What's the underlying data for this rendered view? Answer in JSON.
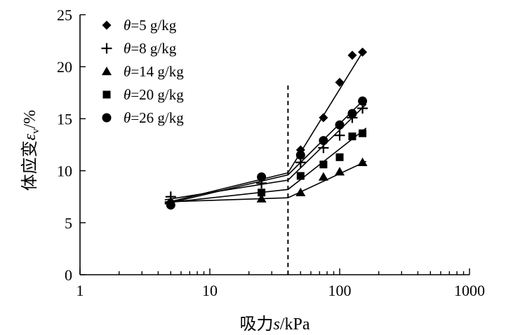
{
  "chart_data": {
    "type": "scatter",
    "xscale": "log",
    "xlim": [
      1,
      1000
    ],
    "ylim": [
      0,
      25
    ],
    "x_ticks": [
      1,
      10,
      100,
      1000
    ],
    "y_ticks": [
      0,
      5,
      10,
      15,
      20,
      25
    ],
    "x_tick_labels": [
      "1",
      "10",
      "100",
      "1000"
    ],
    "y_tick_labels": [
      "0",
      "5",
      "10",
      "15",
      "20",
      "25"
    ],
    "xlabel": {
      "prefix": "吸力",
      "var": "s",
      "suffix": "/kPa"
    },
    "ylabel": {
      "prefix": "体应变",
      "var": "ε",
      "sub": "v",
      "suffix": "/%"
    },
    "legend_position": "top-left",
    "vertical_reference_line": {
      "x": 40,
      "style": "dashed"
    },
    "series": [
      {
        "label": {
          "var": "θ",
          "value": "=5 g/kg"
        },
        "marker": "diamond",
        "points": [
          [
            5,
            7.0
          ],
          [
            25,
            9.3
          ],
          [
            50,
            12.0
          ],
          [
            75,
            15.1
          ],
          [
            100,
            18.5
          ],
          [
            125,
            21.1
          ],
          [
            150,
            21.4
          ]
        ],
        "fit": [
          [
            4.5,
            6.9
          ],
          [
            40,
            9.8
          ],
          [
            150,
            21.4
          ]
        ]
      },
      {
        "label": {
          "var": "θ",
          "value": "=8 g/kg"
        },
        "marker": "plus",
        "points": [
          [
            5,
            7.5
          ],
          [
            25,
            8.8
          ],
          [
            50,
            10.8
          ],
          [
            75,
            12.2
          ],
          [
            100,
            13.4
          ],
          [
            125,
            15.1
          ],
          [
            150,
            16.0
          ]
        ],
        "fit": [
          [
            4.5,
            7.2
          ],
          [
            40,
            9.1
          ],
          [
            160,
            16.4
          ]
        ]
      },
      {
        "label": {
          "var": "θ",
          "value": "=14 g/kg"
        },
        "marker": "triangle",
        "points": [
          [
            25,
            7.3
          ],
          [
            50,
            7.9
          ],
          [
            75,
            9.4
          ],
          [
            100,
            9.9
          ],
          [
            150,
            10.8
          ]
        ],
        "fit": [
          [
            4.5,
            7.0
          ],
          [
            40,
            7.4
          ],
          [
            160,
            10.9
          ]
        ]
      },
      {
        "label": {
          "var": "θ",
          "value": "=20 g/kg"
        },
        "marker": "square",
        "points": [
          [
            25,
            7.9
          ],
          [
            50,
            9.5
          ],
          [
            75,
            10.6
          ],
          [
            100,
            11.3
          ],
          [
            125,
            13.3
          ],
          [
            150,
            13.6
          ]
        ],
        "fit": [
          [
            4.5,
            6.9
          ],
          [
            40,
            8.2
          ],
          [
            160,
            14.1
          ]
        ]
      },
      {
        "label": {
          "var": "θ",
          "value": "=26 g/kg"
        },
        "marker": "circle",
        "points": [
          [
            5,
            6.7
          ],
          [
            25,
            9.4
          ],
          [
            50,
            11.5
          ],
          [
            75,
            12.9
          ],
          [
            100,
            14.4
          ],
          [
            125,
            15.5
          ],
          [
            150,
            16.7
          ]
        ],
        "fit": [
          [
            4.5,
            6.8
          ],
          [
            40,
            9.6
          ],
          [
            150,
            16.7
          ]
        ]
      }
    ]
  }
}
